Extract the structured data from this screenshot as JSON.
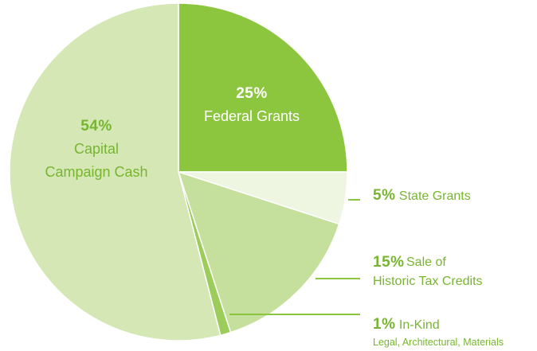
{
  "chart_data": {
    "type": "pie",
    "categories": [
      "Federal Grants",
      "State Grants",
      "Sale of Historic Tax Credits",
      "In-Kind",
      "Capital Campaign Cash"
    ],
    "values": [
      25,
      5,
      15,
      1,
      54
    ],
    "value_labels": [
      "25%",
      "5%",
      "15%",
      "1%",
      "54%"
    ],
    "descriptions": [
      null,
      null,
      null,
      "Legal, Architectural, Materials",
      null
    ],
    "colors": [
      "#8cc63f",
      "#eef5e0",
      "#c5df9c",
      "#9ccc5a",
      "#d4e7b4"
    ]
  }
}
